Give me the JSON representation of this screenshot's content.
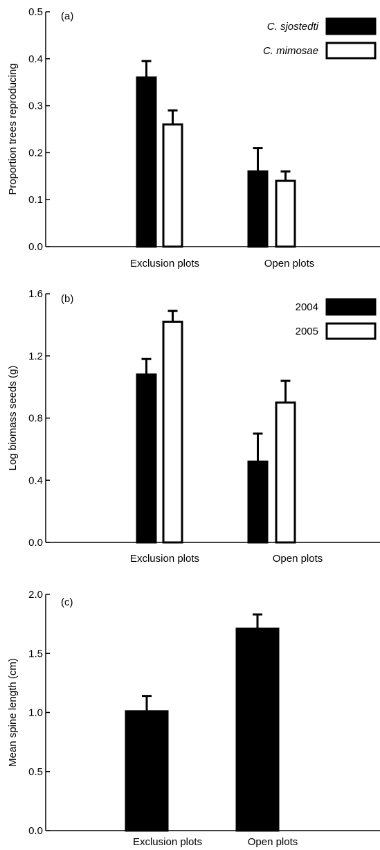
{
  "colors": {
    "black": "#000000",
    "white": "#ffffff"
  },
  "chart_data": [
    {
      "type": "bar",
      "panel_label": "(a)",
      "ylabel": "Proportion trees reproducing",
      "xlabel": "",
      "categories": [
        "Exclusion plots",
        "Open plots"
      ],
      "ylim": [
        0,
        0.5
      ],
      "yticks": [
        0,
        0.1,
        0.2,
        0.3,
        0.4,
        0.5
      ],
      "ytick_labels": [
        "0.0",
        "0.1",
        "0.2",
        "0.3",
        "0.4",
        "0.5"
      ],
      "legend_position": "top-right",
      "series": [
        {
          "name": "C. sjostedti",
          "fill": "#000000",
          "values": [
            0.36,
            0.16
          ],
          "errors": [
            0.035,
            0.05
          ]
        },
        {
          "name": "C. mimosae",
          "fill": "#ffffff",
          "values": [
            0.26,
            0.14
          ],
          "errors": [
            0.03,
            0.02
          ]
        }
      ]
    },
    {
      "type": "bar",
      "panel_label": "(b)",
      "ylabel": "Log biomass seeds (g)",
      "xlabel": "",
      "categories": [
        "Exclusion plots",
        "Open plots"
      ],
      "ylim": [
        0,
        1.6
      ],
      "yticks": [
        0,
        0.4,
        0.8,
        1.2,
        1.6
      ],
      "ytick_labels": [
        "0.0",
        "0.4",
        "0.8",
        "1.2",
        "1.6"
      ],
      "legend_position": "top-right",
      "series": [
        {
          "name": "2004",
          "fill": "#000000",
          "values": [
            1.08,
            0.52
          ],
          "errors": [
            0.1,
            0.18
          ]
        },
        {
          "name": "2005",
          "fill": "#ffffff",
          "values": [
            1.42,
            0.9
          ],
          "errors": [
            0.07,
            0.14
          ]
        }
      ]
    },
    {
      "type": "bar",
      "panel_label": "(c)",
      "ylabel": "Mean spine length (cm)",
      "xlabel": "",
      "categories": [
        "Exclusion plots",
        "Open plots"
      ],
      "ylim": [
        0,
        2.0
      ],
      "yticks": [
        0,
        0.5,
        1.0,
        1.5,
        2.0
      ],
      "ytick_labels": [
        "0.0",
        "0.5",
        "1.0",
        "1.5",
        "2.0"
      ],
      "legend_position": "none",
      "series": [
        {
          "fill": "#000000",
          "values": [
            1.01,
            1.71
          ],
          "errors": [
            0.13,
            0.12
          ]
        }
      ]
    }
  ]
}
